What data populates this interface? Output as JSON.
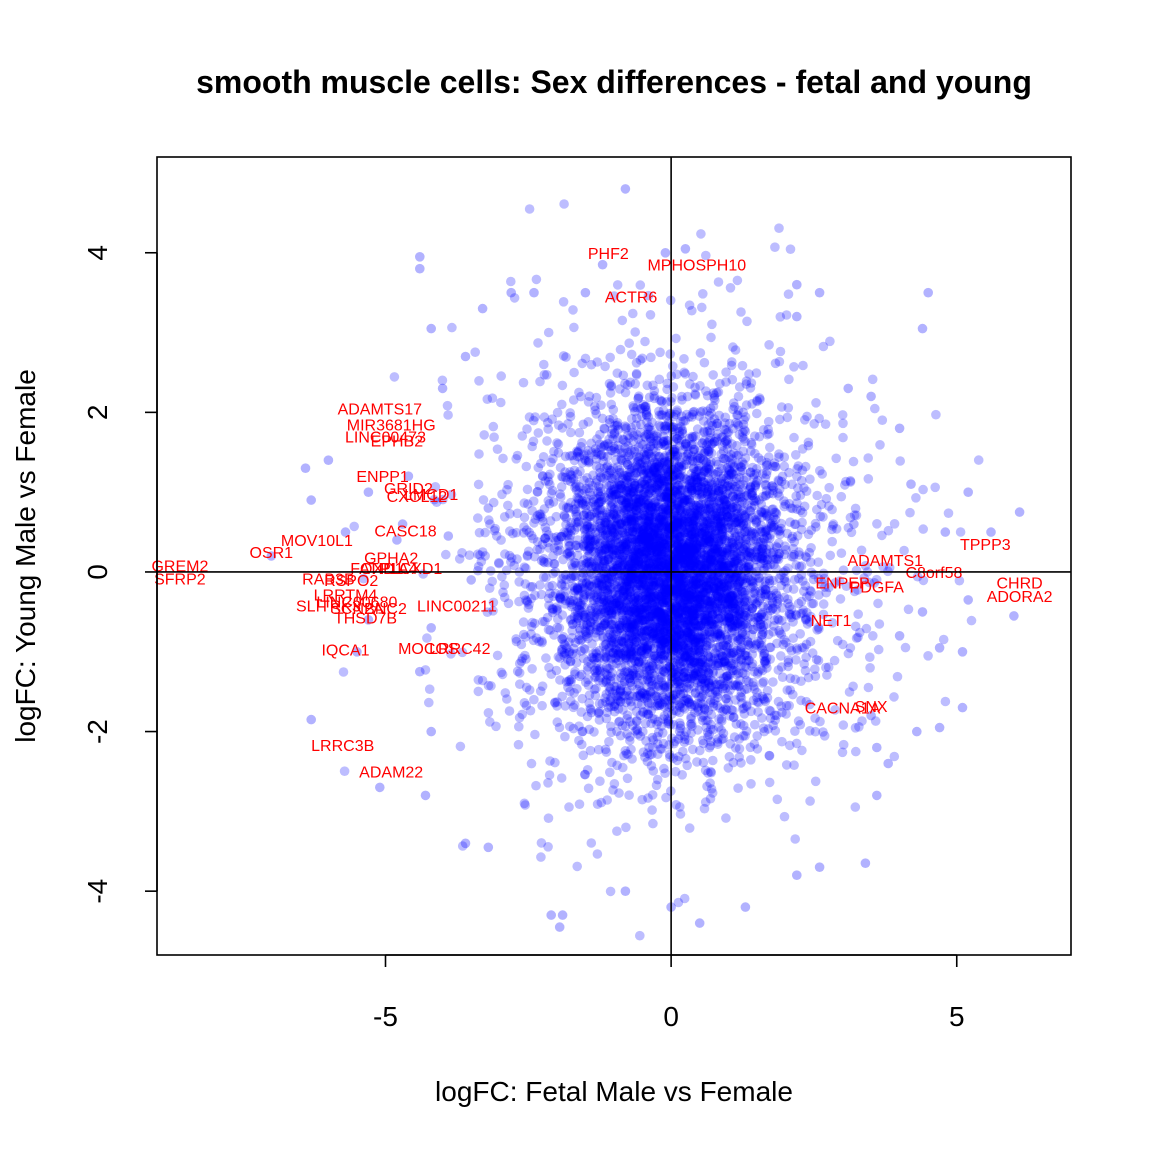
{
  "chart_data": {
    "type": "scatter",
    "title": "smooth muscle cells: Sex differences - fetal and young",
    "xlabel": "logFC: Fetal Male vs Female",
    "ylabel": "logFC: Young Male vs Female",
    "xlim": [
      -9.0,
      7.0
    ],
    "ylim": [
      -4.8,
      5.2
    ],
    "x_ticks": [
      -5,
      0,
      5
    ],
    "x_tick_labels": [
      "-5",
      "0",
      "5"
    ],
    "y_ticks": [
      -4,
      -2,
      0,
      2,
      4
    ],
    "y_tick_labels": [
      "-4",
      "-2",
      "0",
      "2",
      "4"
    ],
    "reference_lines": {
      "x": 0,
      "y": 0
    },
    "grid": false,
    "colors": {
      "points": "#0000ff",
      "labels": "#ff0000",
      "axes": "#000000"
    },
    "outlier_points": [
      {
        "x": -0.8,
        "y": 4.8
      },
      {
        "x": -4.4,
        "y": 3.95
      },
      {
        "x": -4.4,
        "y": 3.8
      },
      {
        "x": -1.2,
        "y": 3.85
      },
      {
        "x": 0.25,
        "y": 4.05
      },
      {
        "x": -0.1,
        "y": 4.0
      },
      {
        "x": 2.2,
        "y": 3.6
      },
      {
        "x": 2.6,
        "y": 3.5
      },
      {
        "x": 4.5,
        "y": 3.5
      },
      {
        "x": 4.4,
        "y": 3.05
      },
      {
        "x": 2.2,
        "y": 3.2
      },
      {
        "x": -3.3,
        "y": 3.3
      },
      {
        "x": -2.8,
        "y": 3.5
      },
      {
        "x": -2.4,
        "y": 3.5
      },
      {
        "x": -4.2,
        "y": 3.05
      },
      {
        "x": -1.5,
        "y": 3.5
      },
      {
        "x": -3.6,
        "y": 2.7
      },
      {
        "x": -4.0,
        "y": 2.3
      },
      {
        "x": 3.1,
        "y": 2.3
      },
      {
        "x": 3.5,
        "y": 2.2
      },
      {
        "x": 4.0,
        "y": 1.8
      },
      {
        "x": 4.2,
        "y": 1.1
      },
      {
        "x": 5.2,
        "y": 1.0
      },
      {
        "x": 6.1,
        "y": 0.75
      },
      {
        "x": 5.6,
        "y": 0.5
      },
      {
        "x": 4.8,
        "y": 0.5
      },
      {
        "x": 3.2,
        "y": 0.6
      },
      {
        "x": -6.4,
        "y": 1.3
      },
      {
        "x": -6.3,
        "y": 0.9
      },
      {
        "x": -6.0,
        "y": 1.4
      },
      {
        "x": -5.7,
        "y": 0.5
      },
      {
        "x": -5.3,
        "y": 1.0
      },
      {
        "x": -4.6,
        "y": 1.2
      },
      {
        "x": -4.7,
        "y": 0.6
      },
      {
        "x": -7.0,
        "y": 0.2
      },
      {
        "x": -4.8,
        "y": 0.4
      },
      {
        "x": 6.0,
        "y": -0.55
      },
      {
        "x": 5.2,
        "y": -0.35
      },
      {
        "x": 4.4,
        "y": -0.5
      },
      {
        "x": 4.0,
        "y": -0.8
      },
      {
        "x": 4.7,
        "y": -0.95
      },
      {
        "x": 5.1,
        "y": -1.0
      },
      {
        "x": 4.7,
        "y": -1.95
      },
      {
        "x": 5.1,
        "y": -1.7
      },
      {
        "x": 4.3,
        "y": -2.0
      },
      {
        "x": 3.5,
        "y": -1.8
      },
      {
        "x": 3.6,
        "y": -2.2
      },
      {
        "x": 3.8,
        "y": -2.4
      },
      {
        "x": 3.6,
        "y": -2.8
      },
      {
        "x": 3.4,
        "y": -3.65
      },
      {
        "x": 2.6,
        "y": -3.7
      },
      {
        "x": 2.2,
        "y": -3.8
      },
      {
        "x": 1.3,
        "y": -4.2
      },
      {
        "x": 0.5,
        "y": -4.4
      },
      {
        "x": 0.0,
        "y": -4.2
      },
      {
        "x": -0.8,
        "y": -4.0
      },
      {
        "x": -1.9,
        "y": -4.3
      },
      {
        "x": -1.95,
        "y": -4.45
      },
      {
        "x": -2.1,
        "y": -4.3
      },
      {
        "x": -3.2,
        "y": -3.45
      },
      {
        "x": -3.6,
        "y": -3.4
      },
      {
        "x": -4.3,
        "y": -2.8
      },
      {
        "x": -5.1,
        "y": -2.7
      },
      {
        "x": -6.3,
        "y": -1.85
      },
      {
        "x": -4.2,
        "y": -2.0
      },
      {
        "x": -4.4,
        "y": -1.25
      },
      {
        "x": -4.2,
        "y": -0.7
      },
      {
        "x": -5.5,
        "y": -1.0
      },
      {
        "x": -5.3,
        "y": -0.6
      },
      {
        "x": -3.5,
        "y": -0.1
      },
      {
        "x": -3.9,
        "y": 0.45
      },
      {
        "x": -3.2,
        "y": 0.8
      }
    ],
    "labeled_genes": [
      {
        "label": "PHF2",
        "x": -1.1,
        "y": 4.0
      },
      {
        "label": "MPHOSPH10",
        "x": 0.45,
        "y": 3.85
      },
      {
        "label": "ACTR6",
        "x": -0.7,
        "y": 3.45
      },
      {
        "label": "ADAMTS17",
        "x": -5.1,
        "y": 2.05
      },
      {
        "label": "MIR3681HG",
        "x": -4.9,
        "y": 1.85
      },
      {
        "label": "LINC00473",
        "x": -5.0,
        "y": 1.7
      },
      {
        "label": "EPHB2",
        "x": -4.8,
        "y": 1.65
      },
      {
        "label": "ENPP1",
        "x": -5.05,
        "y": 1.2
      },
      {
        "label": "GRID2",
        "x": -4.6,
        "y": 1.05
      },
      {
        "label": "CXCL12",
        "x": -4.45,
        "y": 0.95
      },
      {
        "label": "LMCD1",
        "x": -4.2,
        "y": 0.98
      },
      {
        "label": "CASC18",
        "x": -4.65,
        "y": 0.52
      },
      {
        "label": "MOV10L1",
        "x": -6.2,
        "y": 0.4
      },
      {
        "label": "OSR1",
        "x": -7.0,
        "y": 0.25
      },
      {
        "label": "GPHA2",
        "x": -4.9,
        "y": 0.18
      },
      {
        "label": "FOXD1",
        "x": -5.15,
        "y": 0.05
      },
      {
        "label": "ATP1A4",
        "x": -4.95,
        "y": 0.05
      },
      {
        "label": "PLCXD1",
        "x": -4.55,
        "y": 0.05
      },
      {
        "label": "GREM2",
        "x": -8.6,
        "y": 0.08
      },
      {
        "label": "SFRP2",
        "x": -8.6,
        "y": -0.08
      },
      {
        "label": "RAB3B",
        "x": -6.0,
        "y": -0.08
      },
      {
        "label": "RSPO2",
        "x": -5.6,
        "y": -0.1
      },
      {
        "label": "LRRTM4",
        "x": -5.7,
        "y": -0.28
      },
      {
        "label": "LINC00680",
        "x": -5.5,
        "y": -0.37
      },
      {
        "label": "SLITRK3",
        "x": -6.0,
        "y": -0.42
      },
      {
        "label": "SCN2A",
        "x": -5.5,
        "y": -0.45
      },
      {
        "label": "BNC2",
        "x": -5.0,
        "y": -0.45
      },
      {
        "label": "LINC00211",
        "x": -3.75,
        "y": -0.42
      },
      {
        "label": "THSD7B",
        "x": -5.35,
        "y": -0.57
      },
      {
        "label": "IQCA1",
        "x": -5.7,
        "y": -0.97
      },
      {
        "label": "MOCOS",
        "x": -4.25,
        "y": -0.95
      },
      {
        "label": "LRRC42",
        "x": -3.7,
        "y": -0.95
      },
      {
        "label": "LRRC3B",
        "x": -5.75,
        "y": -2.17
      },
      {
        "label": "ADAM22",
        "x": -4.9,
        "y": -2.5
      },
      {
        "label": "TPPP3",
        "x": 5.5,
        "y": 0.35
      },
      {
        "label": "ADAMTS1",
        "x": 3.75,
        "y": 0.15
      },
      {
        "label": "C8orf58",
        "x": 4.6,
        "y": 0.0
      },
      {
        "label": "ENPEP",
        "x": 3.0,
        "y": -0.13
      },
      {
        "label": "PDGFA",
        "x": 3.6,
        "y": -0.18
      },
      {
        "label": "CHRD",
        "x": 6.1,
        "y": -0.13
      },
      {
        "label": "ADORA2",
        "x": 6.1,
        "y": -0.3
      },
      {
        "label": "NET1",
        "x": 2.8,
        "y": -0.6
      },
      {
        "label": "CACNA1A",
        "x": 3.0,
        "y": -1.7
      },
      {
        "label": "SNX",
        "x": 3.5,
        "y": -1.68
      }
    ]
  }
}
